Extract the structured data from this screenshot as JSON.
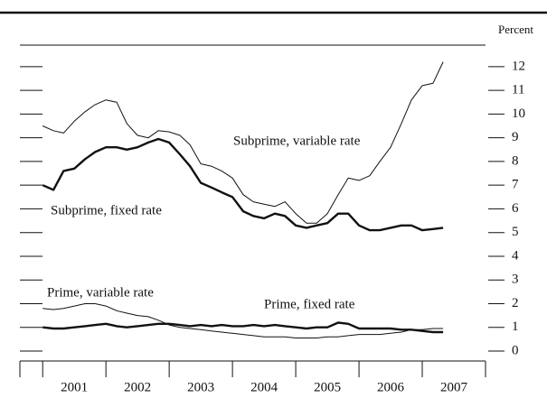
{
  "chart_data": {
    "type": "line",
    "y_label": "Percent",
    "annotations": [
      "Subprime, variable rate",
      "Subprime, fixed rate",
      "Prime, variable rate",
      "Prime, fixed rate"
    ],
    "x": [
      2001,
      2001.17,
      2001.33,
      2001.5,
      2001.67,
      2001.83,
      2002,
      2002.17,
      2002.33,
      2002.5,
      2002.67,
      2002.83,
      2003,
      2003.17,
      2003.33,
      2003.5,
      2003.67,
      2003.83,
      2004,
      2004.17,
      2004.33,
      2004.5,
      2004.67,
      2004.83,
      2005,
      2005.17,
      2005.33,
      2005.5,
      2005.67,
      2005.83,
      2006,
      2006.17,
      2006.33,
      2006.5,
      2006.67,
      2006.83,
      2007,
      2007.17,
      2007.33
    ],
    "series": [
      {
        "name": "Subprime, variable rate",
        "color": "#111111",
        "width": 1,
        "values": [
          9.5,
          9.3,
          9.2,
          9.7,
          10.1,
          10.4,
          10.6,
          10.5,
          9.6,
          9.1,
          9.0,
          9.3,
          9.25,
          9.1,
          8.7,
          7.9,
          7.8,
          7.6,
          7.3,
          6.6,
          6.3,
          6.2,
          6.1,
          6.3,
          5.8,
          5.4,
          5.4,
          5.8,
          6.6,
          7.3,
          7.2,
          7.4,
          8.0,
          8.6,
          9.6,
          10.6,
          11.2,
          11.3,
          12.2
        ]
      },
      {
        "name": "Subprime, fixed rate",
        "color": "#111111",
        "width": 2.4,
        "values": [
          7.0,
          6.8,
          7.6,
          7.7,
          8.1,
          8.4,
          8.6,
          8.6,
          8.5,
          8.6,
          8.8,
          8.95,
          8.8,
          8.3,
          7.8,
          7.1,
          6.9,
          6.7,
          6.5,
          5.9,
          5.7,
          5.6,
          5.8,
          5.7,
          5.3,
          5.2,
          5.3,
          5.4,
          5.8,
          5.8,
          5.3,
          5.1,
          5.1,
          5.2,
          5.3,
          5.3,
          5.1,
          5.15,
          5.2
        ]
      },
      {
        "name": "Prime, variable rate",
        "color": "#111111",
        "width": 1,
        "values": [
          1.8,
          1.75,
          1.8,
          1.9,
          2.0,
          2.0,
          1.9,
          1.7,
          1.6,
          1.5,
          1.45,
          1.3,
          1.1,
          1.0,
          0.95,
          0.9,
          0.85,
          0.8,
          0.75,
          0.7,
          0.65,
          0.6,
          0.6,
          0.6,
          0.55,
          0.55,
          0.55,
          0.6,
          0.6,
          0.65,
          0.7,
          0.7,
          0.7,
          0.75,
          0.8,
          0.9,
          0.9,
          0.95,
          0.95
        ]
      },
      {
        "name": "Prime, fixed rate",
        "color": "#111111",
        "width": 2.4,
        "values": [
          1.0,
          0.95,
          0.95,
          1.0,
          1.05,
          1.1,
          1.15,
          1.05,
          1.0,
          1.05,
          1.1,
          1.15,
          1.15,
          1.1,
          1.05,
          1.1,
          1.05,
          1.1,
          1.05,
          1.05,
          1.1,
          1.05,
          1.1,
          1.05,
          1.0,
          0.95,
          1.0,
          1.0,
          1.2,
          1.15,
          0.95,
          0.95,
          0.95,
          0.95,
          0.9,
          0.9,
          0.85,
          0.8,
          0.8
        ]
      }
    ],
    "xlim": [
      2000.64,
      2008
    ],
    "xticks": [
      {
        "value": 2001,
        "label": "2001"
      },
      {
        "value": 2002,
        "label": "2002"
      },
      {
        "value": 2003,
        "label": "2003"
      },
      {
        "value": 2004,
        "label": "2004"
      },
      {
        "value": 2005,
        "label": "2005"
      },
      {
        "value": 2006,
        "label": "2006"
      },
      {
        "value": 2007,
        "label": "2007"
      }
    ],
    "ylim": [
      -0.42,
      12.91
    ],
    "yticks": [
      0,
      1,
      2,
      3,
      4,
      5,
      6,
      7,
      8,
      9,
      10,
      11,
      12
    ]
  }
}
